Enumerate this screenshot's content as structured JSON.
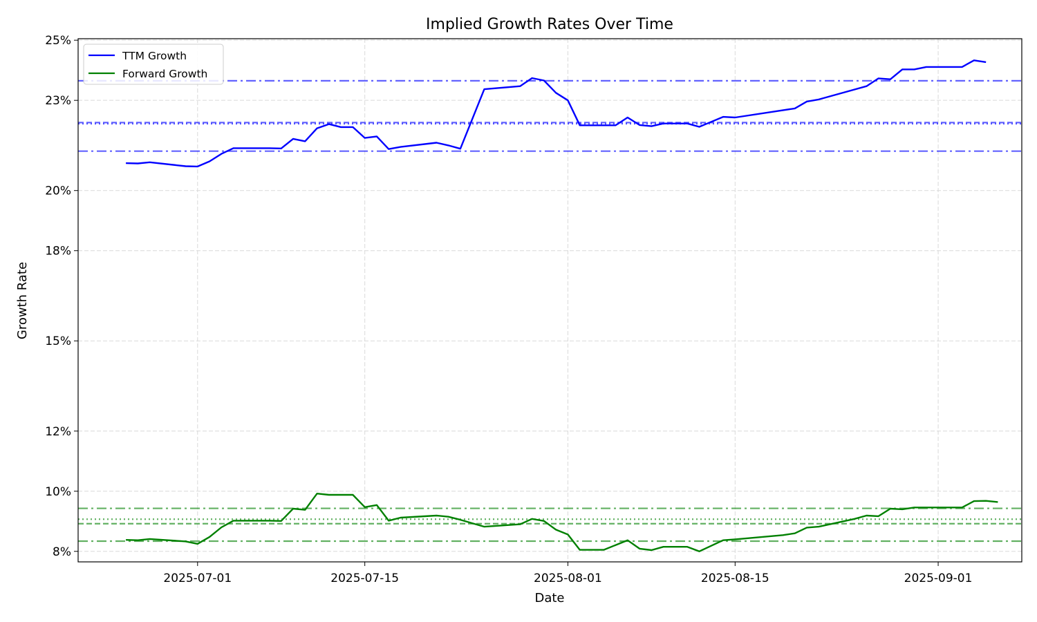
{
  "chart_data": {
    "type": "line",
    "title": "Implied Growth Rates Over Time",
    "xlabel": "Date",
    "ylabel": "Growth Rate",
    "x_ticks": [
      "2025-07-01",
      "2025-07-15",
      "2025-08-01",
      "2025-08-15",
      "2025-09-01"
    ],
    "y_ticks": [
      "8%",
      "10%",
      "12%",
      "15%",
      "18%",
      "20%",
      "23%",
      "25%"
    ],
    "ylim": [
      0.0765,
      0.2505
    ],
    "xlim": [
      "2025-06-21",
      "2025-09-08"
    ],
    "grid": true,
    "legend_position": "top-left",
    "series": [
      {
        "name": "TTM Growth",
        "color": "#0000ff",
        "points": [
          [
            "2025-06-25",
            0.2091
          ],
          [
            "2025-06-26",
            0.209
          ],
          [
            "2025-06-27",
            0.2094
          ],
          [
            "2025-06-30",
            0.2081
          ],
          [
            "2025-07-01",
            0.208
          ],
          [
            "2025-07-02",
            0.2097
          ],
          [
            "2025-07-03",
            0.2122
          ],
          [
            "2025-07-04",
            0.2141
          ],
          [
            "2025-07-07",
            0.2141
          ],
          [
            "2025-07-08",
            0.214
          ],
          [
            "2025-07-09",
            0.2172
          ],
          [
            "2025-07-10",
            0.2164
          ],
          [
            "2025-07-11",
            0.2207
          ],
          [
            "2025-07-12",
            0.2221
          ],
          [
            "2025-07-13",
            0.2211
          ],
          [
            "2025-07-14",
            0.2211
          ],
          [
            "2025-07-15",
            0.2175
          ],
          [
            "2025-07-16",
            0.218
          ],
          [
            "2025-07-17",
            0.2138
          ],
          [
            "2025-07-18",
            0.2145
          ],
          [
            "2025-07-21",
            0.2159
          ],
          [
            "2025-07-22",
            0.215
          ],
          [
            "2025-07-23",
            0.2139
          ],
          [
            "2025-07-25",
            0.2337
          ],
          [
            "2025-07-28",
            0.2347
          ],
          [
            "2025-07-29",
            0.2374
          ],
          [
            "2025-07-30",
            0.2366
          ],
          [
            "2025-07-31",
            0.2325
          ],
          [
            "2025-08-01",
            0.23
          ],
          [
            "2025-08-02",
            0.2217
          ],
          [
            "2025-08-05",
            0.2217
          ],
          [
            "2025-08-06",
            0.2243
          ],
          [
            "2025-08-07",
            0.2218
          ],
          [
            "2025-08-08",
            0.2214
          ],
          [
            "2025-08-09",
            0.2223
          ],
          [
            "2025-08-11",
            0.2223
          ],
          [
            "2025-08-12",
            0.2212
          ],
          [
            "2025-08-14",
            0.2245
          ],
          [
            "2025-08-15",
            0.2243
          ],
          [
            "2025-08-20",
            0.2273
          ],
          [
            "2025-08-21",
            0.2296
          ],
          [
            "2025-08-22",
            0.2303
          ],
          [
            "2025-08-26",
            0.2347
          ],
          [
            "2025-08-27",
            0.2373
          ],
          [
            "2025-08-28",
            0.237
          ],
          [
            "2025-08-29",
            0.2403
          ],
          [
            "2025-08-30",
            0.2403
          ],
          [
            "2025-08-31",
            0.2411
          ],
          [
            "2025-09-01",
            0.2411
          ],
          [
            "2025-09-02",
            0.2411
          ],
          [
            "2025-09-03",
            0.2411
          ],
          [
            "2025-09-04",
            0.2433
          ],
          [
            "2025-09-05",
            0.2427
          ]
        ],
        "reference_lines": [
          {
            "style": "dashdot",
            "value": 0.2365
          },
          {
            "style": "dashed",
            "value": 0.2226
          },
          {
            "style": "dotted",
            "value": 0.2222
          },
          {
            "style": "dashdot",
            "value": 0.2131
          }
        ]
      },
      {
        "name": "Forward Growth",
        "color": "#008000",
        "points": [
          [
            "2025-06-25",
            0.0838
          ],
          [
            "2025-06-26",
            0.0837
          ],
          [
            "2025-06-27",
            0.0841
          ],
          [
            "2025-06-30",
            0.0833
          ],
          [
            "2025-07-01",
            0.0825
          ],
          [
            "2025-07-02",
            0.0848
          ],
          [
            "2025-07-03",
            0.088
          ],
          [
            "2025-07-04",
            0.0902
          ],
          [
            "2025-07-07",
            0.0902
          ],
          [
            "2025-07-08",
            0.0901
          ],
          [
            "2025-07-09",
            0.0942
          ],
          [
            "2025-07-10",
            0.0938
          ],
          [
            "2025-07-11",
            0.0992
          ],
          [
            "2025-07-12",
            0.0988
          ],
          [
            "2025-07-14",
            0.0988
          ],
          [
            "2025-07-15",
            0.0947
          ],
          [
            "2025-07-16",
            0.0954
          ],
          [
            "2025-07-17",
            0.0902
          ],
          [
            "2025-07-18",
            0.0912
          ],
          [
            "2025-07-21",
            0.0919
          ],
          [
            "2025-07-22",
            0.0915
          ],
          [
            "2025-07-23",
            0.0905
          ],
          [
            "2025-07-25",
            0.0882
          ],
          [
            "2025-07-28",
            0.089
          ],
          [
            "2025-07-29",
            0.0908
          ],
          [
            "2025-07-30",
            0.0901
          ],
          [
            "2025-07-31",
            0.0872
          ],
          [
            "2025-08-01",
            0.0856
          ],
          [
            "2025-08-02",
            0.0805
          ],
          [
            "2025-08-04",
            0.0805
          ],
          [
            "2025-08-06",
            0.0837
          ],
          [
            "2025-08-07",
            0.0809
          ],
          [
            "2025-08-08",
            0.0804
          ],
          [
            "2025-08-09",
            0.0815
          ],
          [
            "2025-08-11",
            0.0815
          ],
          [
            "2025-08-12",
            0.08
          ],
          [
            "2025-08-14",
            0.0837
          ],
          [
            "2025-08-15",
            0.084
          ],
          [
            "2025-08-19",
            0.0854
          ],
          [
            "2025-08-20",
            0.086
          ],
          [
            "2025-08-21",
            0.0879
          ],
          [
            "2025-08-22",
            0.0882
          ],
          [
            "2025-08-25",
            0.0908
          ],
          [
            "2025-08-26",
            0.0919
          ],
          [
            "2025-08-27",
            0.0917
          ],
          [
            "2025-08-28",
            0.0942
          ],
          [
            "2025-08-29",
            0.094
          ],
          [
            "2025-08-30",
            0.0946
          ],
          [
            "2025-09-01",
            0.0946
          ],
          [
            "2025-09-03",
            0.0946
          ],
          [
            "2025-09-04",
            0.0967
          ],
          [
            "2025-09-05",
            0.0968
          ],
          [
            "2025-09-06",
            0.0964
          ]
        ],
        "reference_lines": [
          {
            "style": "dashdot",
            "value": 0.0943
          },
          {
            "style": "dotted",
            "value": 0.0907
          },
          {
            "style": "dashed",
            "value": 0.0892
          },
          {
            "style": "dashdot",
            "value": 0.0834
          }
        ]
      }
    ]
  }
}
